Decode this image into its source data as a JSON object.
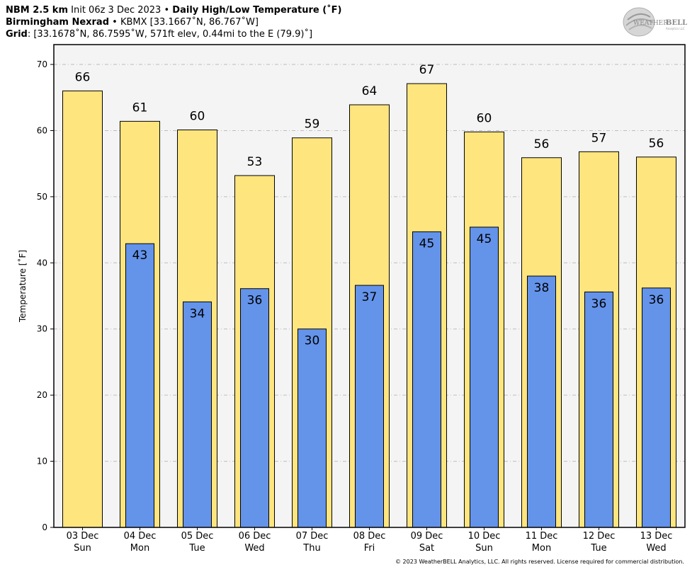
{
  "header": {
    "line1": {
      "model": "NBM 2.5 km",
      "init": "Init 06z 3 Dec 2023",
      "sep": "•",
      "product": "Daily High/Low Temperature (˚F)"
    },
    "line2": {
      "site": "Birmingham Nexrad",
      "sep": "•",
      "station": "KBMX [33.1667˚N, 86.767˚W]"
    },
    "line3": {
      "label": "Grid",
      "value": ": [33.1678˚N, 86.7595˚W, 571ft elev, 0.44mi to the E (79.9)˚]"
    }
  },
  "logo": {
    "text1": "WEATHER",
    "text2": "BELL",
    "sub": "Analytics LLC"
  },
  "footer": "© 2023 WeatherBELL Analytics, LLC. All rights reserved. License required for commercial distribution.",
  "chart_data": {
    "type": "bar",
    "categories": [
      "03 Dec",
      "04 Dec",
      "05 Dec",
      "06 Dec",
      "07 Dec",
      "08 Dec",
      "09 Dec",
      "10 Dec",
      "11 Dec",
      "12 Dec",
      "13 Dec"
    ],
    "weekdays": [
      "Sun",
      "Mon",
      "Tue",
      "Wed",
      "Thu",
      "Fri",
      "Sat",
      "Sun",
      "Mon",
      "Tue",
      "Wed"
    ],
    "series": [
      {
        "values": [
          66,
          61.4,
          60.1,
          53.2,
          58.9,
          63.9,
          67.1,
          59.8,
          55.9,
          56.8,
          56
        ]
      },
      {
        "values": [
          null,
          42.9,
          34.1,
          36.1,
          30,
          36.6,
          44.7,
          45.4,
          38,
          35.6,
          36.2
        ]
      }
    ],
    "high_labels": [
      "66",
      "61",
      "60",
      "53",
      "59",
      "64",
      "67",
      "60",
      "56",
      "57",
      "56"
    ],
    "low_labels": [
      "",
      "43",
      "34",
      "36",
      "30",
      "37",
      "45",
      "45",
      "38",
      "36",
      "36"
    ],
    "ylabel": "Temperature [˚F]",
    "xlabel": "",
    "ylim": [
      0,
      73
    ],
    "yticks": [
      0,
      10,
      20,
      30,
      40,
      50,
      60,
      70
    ],
    "grid": true,
    "colors": {
      "high": "#fee57e",
      "low": "#6493ea",
      "outline": "#000000",
      "plot_bg": "#f4f4f4",
      "grid": "#bdbdbd"
    }
  }
}
